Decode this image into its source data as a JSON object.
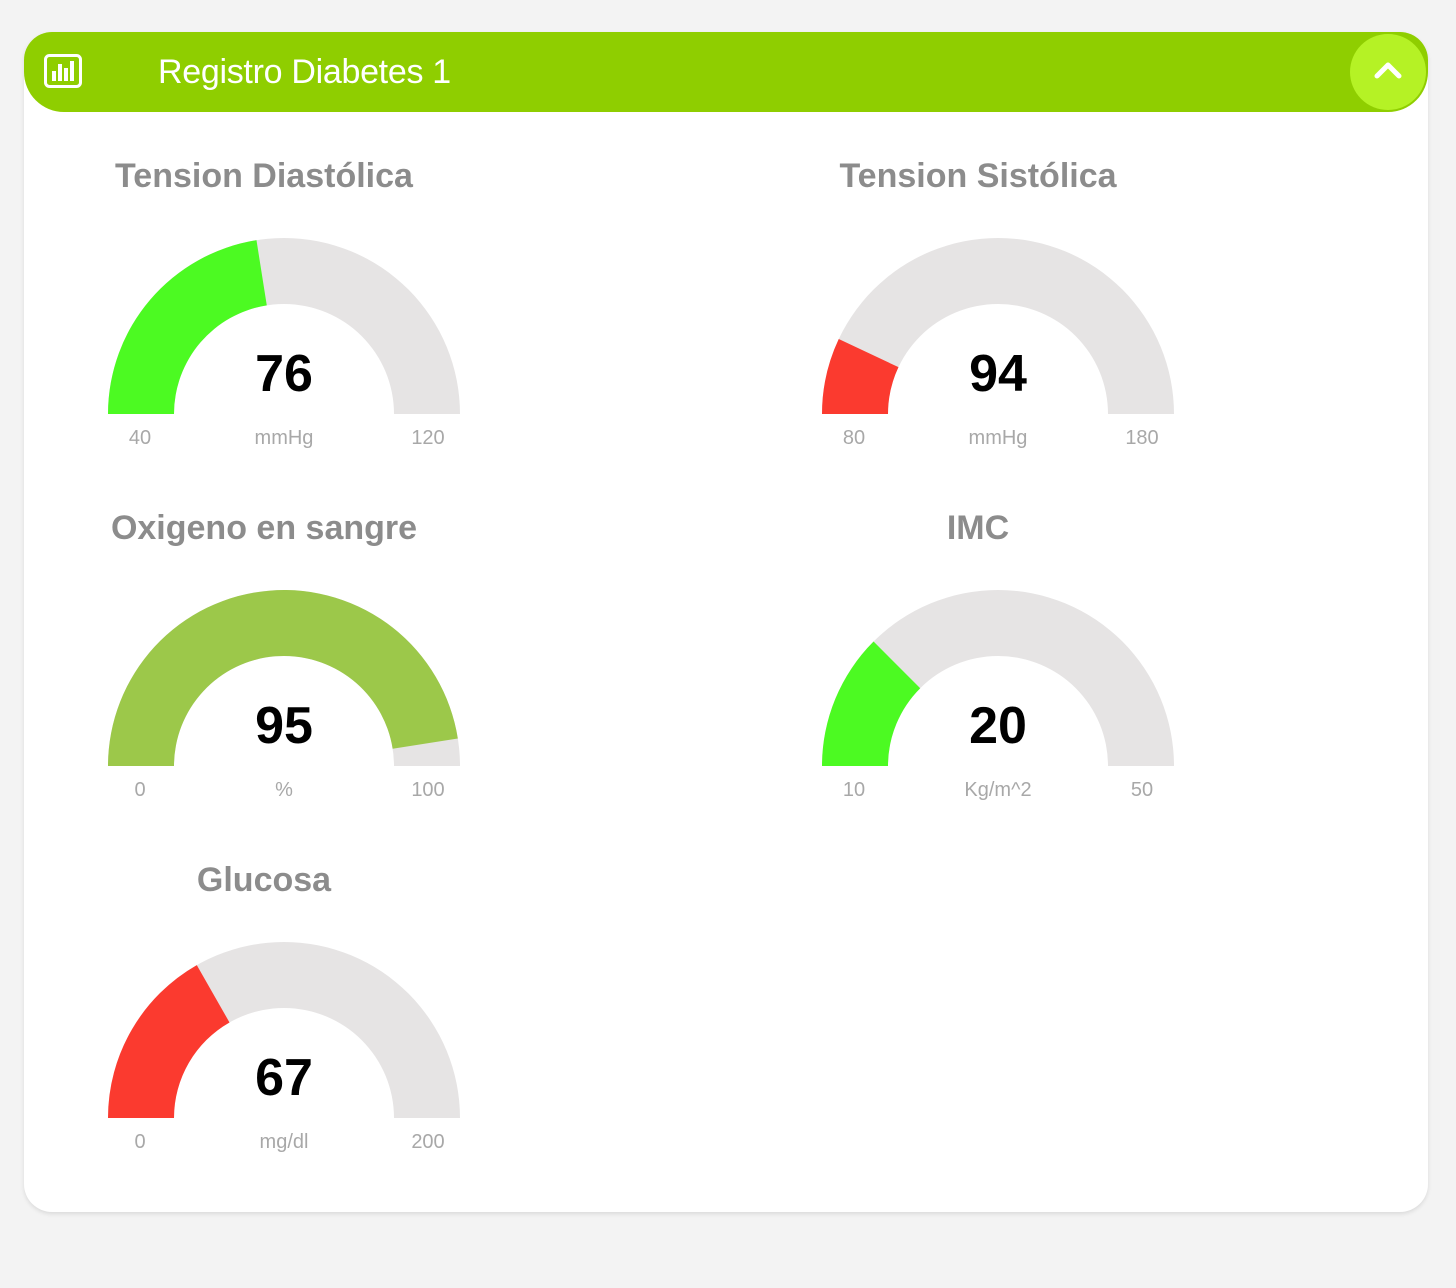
{
  "panel": {
    "title": "Registro Diabetes 1",
    "header_icon": "bar-chart-icon",
    "collapse_icon": "chevron-up-icon",
    "header_color": "#8fce00"
  },
  "chart_data": [
    {
      "type": "gauge",
      "title": "Tension Diastólica",
      "value": 76,
      "value_label": "76",
      "min": 40,
      "min_label": "40",
      "max": 120,
      "max_label": "120",
      "unit": "mmHg",
      "color": "#4cfa22"
    },
    {
      "type": "gauge",
      "title": "Tension Sistólica",
      "value": 94,
      "value_label": "94",
      "min": 80,
      "min_label": "80",
      "max": 180,
      "max_label": "180",
      "unit": "mmHg",
      "color": "#fb3a2f"
    },
    {
      "type": "gauge",
      "title": "Oxigeno en sangre",
      "value": 95,
      "value_label": "95",
      "min": 0,
      "min_label": "0",
      "max": 100,
      "max_label": "100",
      "unit": "%",
      "color": "#9cc84a"
    },
    {
      "type": "gauge",
      "title": "IMC",
      "value": 20,
      "value_label": "20",
      "min": 10,
      "min_label": "10",
      "max": 50,
      "max_label": "50",
      "unit": "Kg/m^2",
      "color": "#4cfa22"
    },
    {
      "type": "gauge",
      "title": "Glucosa",
      "value": 67,
      "value_label": "67",
      "min": 0,
      "min_label": "0",
      "max": 200,
      "max_label": "200",
      "unit": "mg/dl",
      "color": "#fb3a2f"
    }
  ]
}
